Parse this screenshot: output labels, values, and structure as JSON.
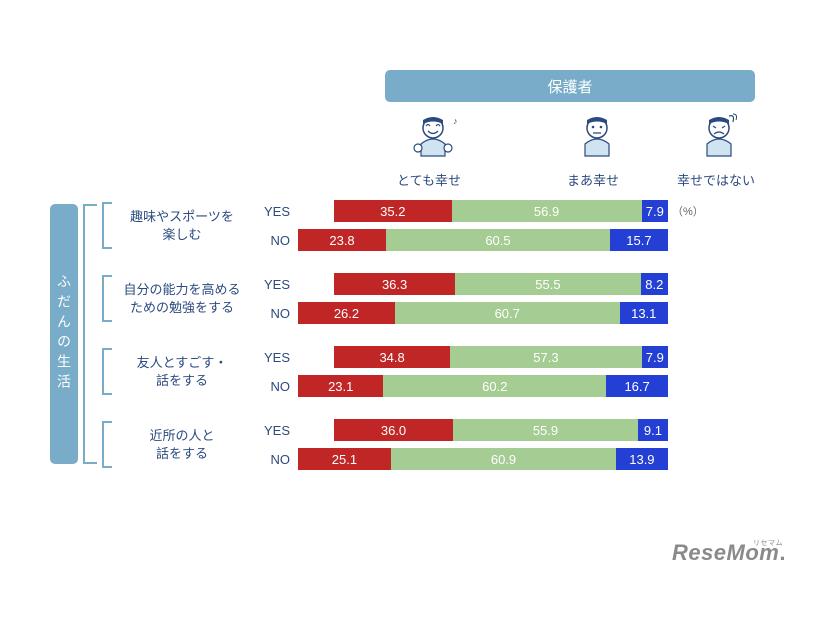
{
  "header": {
    "title": "保護者"
  },
  "sideTab": "ふだんの生活",
  "legend": {
    "l1": "とても幸せ",
    "l2": "まあ幸せ",
    "l3": "幸せではない"
  },
  "pctNote": "（%）",
  "colors": {
    "veryHappy": "#c02626",
    "somewhatHappy": "#a5cc92",
    "notHappy": "#233fd4",
    "accent": "#78acc9",
    "textBlue": "#2b4a7f",
    "bg": "#ffffff"
  },
  "chart": {
    "barWidth": 370,
    "yesInset": 36,
    "groups": [
      {
        "label": "趣味やスポーツを\n楽しむ",
        "rows": [
          {
            "yn": "YES",
            "v": [
              35.2,
              56.9,
              7.9
            ],
            "vl": [
              "35.2",
              "56.9",
              "7.9"
            ]
          },
          {
            "yn": "NO",
            "v": [
              23.8,
              60.5,
              15.7
            ],
            "vl": [
              "23.8",
              "60.5",
              "15.7"
            ]
          }
        ]
      },
      {
        "label": "自分の能力を高める\nための勉強をする",
        "rows": [
          {
            "yn": "YES",
            "v": [
              36.3,
              55.5,
              8.2
            ],
            "vl": [
              "36.3",
              "55.5",
              "8.2"
            ]
          },
          {
            "yn": "NO",
            "v": [
              26.2,
              60.7,
              13.1
            ],
            "vl": [
              "26.2",
              "60.7",
              "13.1"
            ]
          }
        ]
      },
      {
        "label": "友人とすごす・\n話をする",
        "rows": [
          {
            "yn": "YES",
            "v": [
              34.8,
              57.3,
              7.9
            ],
            "vl": [
              "34.8",
              "57.3",
              "7.9"
            ]
          },
          {
            "yn": "NO",
            "v": [
              23.1,
              60.2,
              16.7
            ],
            "vl": [
              "23.1",
              "60.2",
              "16.7"
            ]
          }
        ]
      },
      {
        "label": "近所の人と\n話をする",
        "rows": [
          {
            "yn": "YES",
            "v": [
              36.0,
              55.9,
              9.1
            ],
            "vl": [
              "36.0",
              "55.9",
              "9.1"
            ]
          },
          {
            "yn": "NO",
            "v": [
              25.1,
              60.9,
              13.9
            ],
            "vl": [
              "25.1",
              "60.9",
              "13.9"
            ]
          }
        ]
      }
    ]
  },
  "watermark": {
    "text": "ReseMom",
    "ruby": "リセマム"
  }
}
